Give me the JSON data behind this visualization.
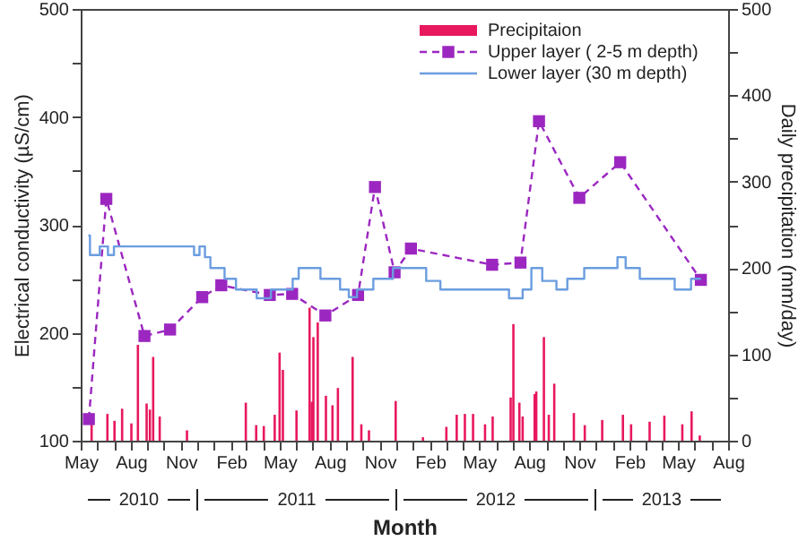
{
  "chart_data": {
    "type": "line",
    "xlabel": "Month",
    "ylabel": "Electrical conductivity (µS/cm)",
    "y2label": "Daily precipitation (mm/day)",
    "legend": "top right",
    "annotations": [
      "2010",
      "2011",
      "2012",
      "2013"
    ],
    "xlim": [
      "2010-05-01",
      "2013-08-01"
    ],
    "xticks": [
      {
        "value": "2010-05-01",
        "label": "May"
      },
      {
        "value": "2010-06-01",
        "label": null
      },
      {
        "value": "2010-07-01",
        "label": null
      },
      {
        "value": "2010-08-01",
        "label": "Aug"
      },
      {
        "value": "2010-09-01",
        "label": null
      },
      {
        "value": "2010-10-01",
        "label": null
      },
      {
        "value": "2010-11-01",
        "label": "Nov"
      },
      {
        "value": "2010-12-01",
        "label": null
      },
      {
        "value": "2011-01-01",
        "label": null
      },
      {
        "value": "2011-02-01",
        "label": "Feb"
      },
      {
        "value": "2011-03-01",
        "label": null
      },
      {
        "value": "2011-04-01",
        "label": null
      },
      {
        "value": "2011-05-01",
        "label": "May"
      },
      {
        "value": "2011-06-01",
        "label": null
      },
      {
        "value": "2011-07-01",
        "label": null
      },
      {
        "value": "2011-08-01",
        "label": "Aug"
      },
      {
        "value": "2011-09-01",
        "label": null
      },
      {
        "value": "2011-10-01",
        "label": null
      },
      {
        "value": "2011-11-01",
        "label": "Nov"
      },
      {
        "value": "2011-12-01",
        "label": null
      },
      {
        "value": "2012-01-01",
        "label": null
      },
      {
        "value": "2012-02-01",
        "label": "Feb"
      },
      {
        "value": "2012-03-01",
        "label": null
      },
      {
        "value": "2012-04-01",
        "label": null
      },
      {
        "value": "2012-05-01",
        "label": "May"
      },
      {
        "value": "2012-06-01",
        "label": null
      },
      {
        "value": "2012-07-01",
        "label": null
      },
      {
        "value": "2012-08-01",
        "label": "Aug"
      },
      {
        "value": "2012-09-01",
        "label": null
      },
      {
        "value": "2012-10-01",
        "label": null
      },
      {
        "value": "2012-11-01",
        "label": "Nov"
      },
      {
        "value": "2012-12-01",
        "label": null
      },
      {
        "value": "2013-01-01",
        "label": null
      },
      {
        "value": "2013-02-01",
        "label": "Feb"
      },
      {
        "value": "2013-03-01",
        "label": null
      },
      {
        "value": "2013-04-01",
        "label": null
      },
      {
        "value": "2013-05-01",
        "label": "May"
      },
      {
        "value": "2013-06-01",
        "label": null
      },
      {
        "value": "2013-07-01",
        "label": null
      },
      {
        "value": "2013-08-01",
        "label": "Aug"
      }
    ],
    "ylim": [
      100,
      500
    ],
    "yticks": [
      100,
      {
        "value": 150,
        "label": null
      },
      200,
      {
        "value": 250,
        "label": null
      },
      300,
      {
        "value": 350,
        "label": null
      },
      400,
      {
        "value": 450,
        "label": null
      },
      500
    ],
    "y2lim": [
      0,
      500
    ],
    "y2ticks": [
      0,
      {
        "value": 50,
        "label": null
      },
      100,
      {
        "value": 150,
        "label": null
      },
      200,
      {
        "value": 250,
        "label": null
      },
      300,
      {
        "value": 350,
        "label": null
      },
      400,
      {
        "value": 450,
        "label": null
      },
      500
    ],
    "series": [
      {
        "name": "Precipitaion",
        "type": "bar",
        "axis": "y2",
        "color": "#e8185e",
        "x": [
          "2010-05-21",
          "2010-06-19",
          "2010-07-02",
          "2010-07-16",
          "2010-08-02",
          "2010-08-14",
          "2010-08-30",
          "2010-09-05",
          "2010-09-11",
          "2010-09-23",
          "2010-11-12",
          "2011-02-28",
          "2011-03-19",
          "2011-04-02",
          "2011-04-22",
          "2011-05-01",
          "2011-05-07",
          "2011-06-01",
          "2011-06-25",
          "2011-06-29",
          "2011-07-02",
          "2011-07-10",
          "2011-07-25",
          "2011-08-06",
          "2011-08-16",
          "2011-09-12",
          "2011-09-28",
          "2011-10-12",
          "2011-11-30",
          "2012-01-19",
          "2012-03-02",
          "2012-03-21",
          "2012-04-05",
          "2012-04-20",
          "2012-05-12",
          "2012-05-26",
          "2012-06-28",
          "2012-07-03",
          "2012-07-14",
          "2012-07-20",
          "2012-08-11",
          "2012-08-14",
          "2012-08-28",
          "2012-09-06",
          "2012-09-16",
          "2012-10-22",
          "2012-11-11",
          "2012-12-13",
          "2013-01-20",
          "2013-02-04",
          "2013-03-10",
          "2013-04-06",
          "2013-05-09",
          "2013-05-26",
          "2013-06-10"
        ],
        "values": [
          26,
          31,
          23,
          37,
          20,
          111,
          43,
          36,
          97,
          28,
          12,
          44,
          18,
          17,
          30,
          102,
          82,
          35,
          154,
          45,
          120,
          137,
          52,
          41,
          61,
          97,
          19,
          12,
          46,
          4,
          16,
          30,
          31,
          31,
          19,
          28,
          50,
          135,
          44,
          28,
          54,
          57,
          120,
          30,
          66,
          32,
          18,
          24,
          30,
          19,
          22,
          29,
          19,
          34,
          6
        ]
      },
      {
        "name": "Upper layer ( 2-5 m depth)",
        "axis": "y",
        "color": "#9b27c0",
        "marker": "square",
        "line_style": "dashed",
        "x": [
          "2010-05-16",
          "2010-06-17",
          "2010-08-26",
          "2010-10-12",
          "2010-12-10",
          "2011-01-14",
          "2011-04-13",
          "2011-05-24",
          "2011-07-24",
          "2011-09-22",
          "2011-10-23",
          "2011-11-28",
          "2011-12-28",
          "2012-05-25",
          "2012-07-16",
          "2012-08-19",
          "2012-11-01",
          "2013-01-15",
          "2013-06-12"
        ],
        "values": [
          120,
          324,
          197,
          203,
          233,
          244,
          235,
          236,
          216,
          235,
          335,
          256,
          278,
          263,
          265,
          396,
          325,
          358,
          249
        ]
      },
      {
        "name": "Lower layer (30 m depth)",
        "type": "step",
        "axis": "y",
        "color": "#6b9de0",
        "x": [
          "2010-05-15",
          "2010-05-18",
          "2010-06-05",
          "2010-06-20",
          "2010-07-01",
          "2010-11-25",
          "2010-12-05",
          "2010-12-15",
          "2010-12-25",
          "2011-01-20",
          "2011-02-10",
          "2011-03-20",
          "2011-04-15",
          "2011-05-25",
          "2011-06-05",
          "2011-07-15",
          "2011-08-20",
          "2011-09-05",
          "2011-09-20",
          "2011-10-20",
          "2011-11-25",
          "2012-01-25",
          "2012-02-20",
          "2012-06-25",
          "2012-07-20",
          "2012-08-05",
          "2012-08-25",
          "2012-09-20",
          "2012-10-10",
          "2012-11-10",
          "2013-01-10",
          "2013-01-25",
          "2013-02-20",
          "2013-04-25",
          "2013-05-25",
          "2013-06-12"
        ],
        "values": [
          290,
          272,
          280,
          272,
          280,
          272,
          280,
          270,
          260,
          250,
          240,
          232,
          240,
          250,
          260,
          250,
          240,
          233,
          240,
          250,
          260,
          248,
          240,
          232,
          240,
          260,
          248,
          240,
          250,
          260,
          270,
          260,
          250,
          240,
          250,
          250
        ]
      }
    ]
  }
}
